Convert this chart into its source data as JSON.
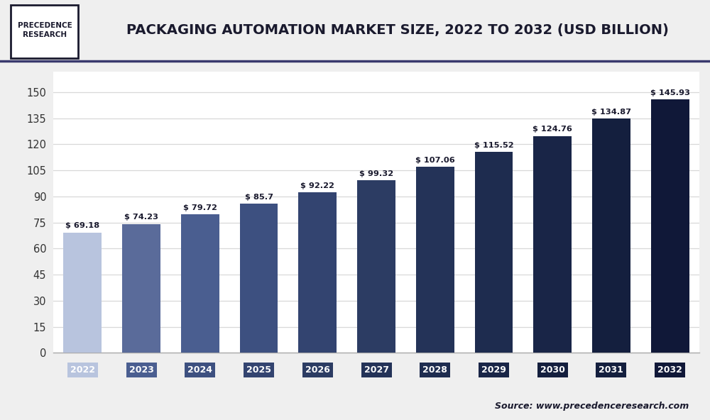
{
  "title": "PACKAGING AUTOMATION MARKET SIZE, 2022 TO 2032 (USD BILLION)",
  "years": [
    2022,
    2023,
    2024,
    2025,
    2026,
    2027,
    2028,
    2029,
    2030,
    2031,
    2032
  ],
  "values": [
    69.18,
    74.23,
    79.72,
    85.7,
    92.22,
    99.32,
    107.06,
    115.52,
    124.76,
    134.87,
    145.93
  ],
  "bar_colors": [
    "#b8c4de",
    "#5a6b9a",
    "#4a5e90",
    "#3d5080",
    "#334470",
    "#2c3c63",
    "#243358",
    "#1e2c4f",
    "#192547",
    "#141f3e",
    "#101838"
  ],
  "tick_label_colors": [
    "#b8c4de",
    "#4a5e90",
    "#3d5080",
    "#334470",
    "#2c3c63",
    "#243358",
    "#1e2c4f",
    "#192547",
    "#141f3e",
    "#141f3e",
    "#101838"
  ],
  "background_color": "#efefef",
  "plot_bg_color": "#ffffff",
  "grid_color": "#d8d8d8",
  "title_color": "#1a1a2e",
  "bar_label_color": "#1a1a2e",
  "yticks": [
    0,
    15,
    30,
    45,
    60,
    75,
    90,
    105,
    120,
    135,
    150
  ],
  "ylim": [
    0,
    162
  ],
  "source_text": "Source: www.precedenceresearch.com",
  "logo_text": "PRECEDENCE\nRESEARCH"
}
